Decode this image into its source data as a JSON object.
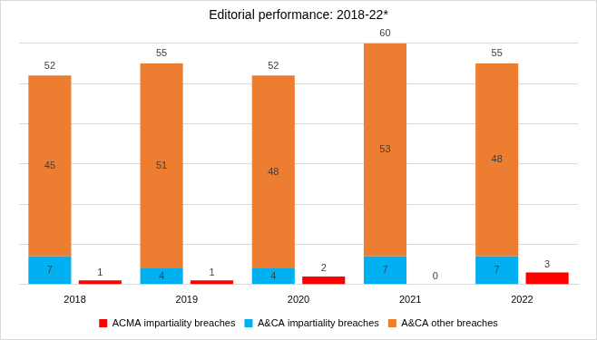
{
  "chart_data": {
    "type": "bar",
    "title": "Editorial performance: 2018-22*",
    "categories": [
      "2018",
      "2019",
      "2020",
      "2021",
      "2022"
    ],
    "series": [
      {
        "name": "ACMA impartiality breaches",
        "color": "#ff0000",
        "values": [
          1,
          1,
          2,
          0,
          3
        ]
      },
      {
        "name": "A&CA impartiality breaches",
        "color": "#00b0f0",
        "values": [
          7,
          4,
          4,
          7,
          7
        ],
        "stacked": true
      },
      {
        "name": "A&CA other breaches",
        "color": "#ed7d31",
        "values": [
          45,
          51,
          48,
          53,
          48
        ],
        "stacked": true
      }
    ],
    "totals": [
      52,
      55,
      52,
      60,
      55
    ],
    "ylim": [
      0,
      60
    ],
    "yticks": [
      0,
      10,
      20,
      30,
      40,
      50,
      60
    ],
    "grid": true,
    "legend": "bottom",
    "data_labels": true,
    "tick_labels": "x"
  }
}
